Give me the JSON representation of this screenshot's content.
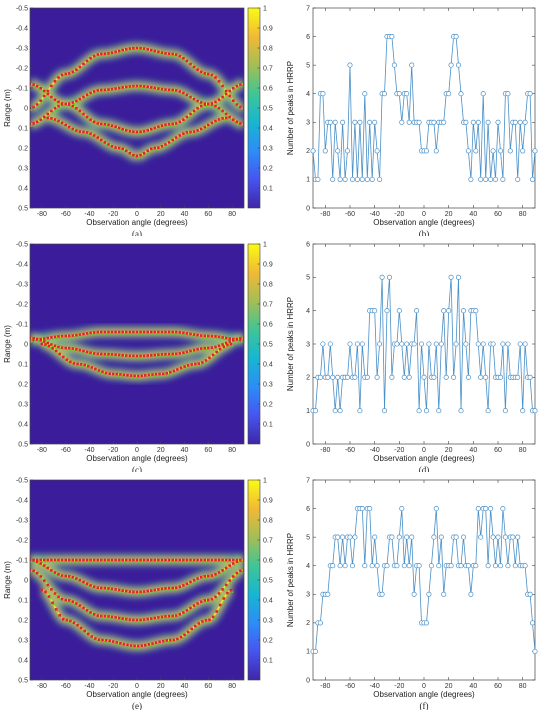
{
  "colors": {
    "heatmap_background": "#3b1c9a",
    "cmap": [
      "#3e26a8",
      "#4755f0",
      "#2c8df7",
      "#17b6d2",
      "#3fc596",
      "#a4be54",
      "#f1b935",
      "#f9fb15"
    ],
    "peak_marker": "#e3232b",
    "peak_secondary": "#6fbf3f",
    "line": "#4a90c8",
    "marker_edge": "#4a90c8"
  },
  "chart_data": [
    {
      "type": "heatmap",
      "panel_label": "(a)",
      "xlabel": "Observation angle (degrees)",
      "ylabel": "Range (m)",
      "xlim": [
        -90,
        90
      ],
      "ylim": [
        -0.5,
        0.5
      ],
      "y_reversed": true,
      "xticks": [
        -80,
        -60,
        -40,
        -20,
        0,
        20,
        40,
        60,
        80
      ],
      "yticks": [
        -0.5,
        -0.4,
        -0.3,
        -0.2,
        -0.1,
        0,
        0.1,
        0.2,
        0.3,
        0.4,
        0.5
      ],
      "colorbar_ticks": [
        0.1,
        0.2,
        0.3,
        0.4,
        0.5,
        0.6,
        0.7,
        0.8,
        0.9,
        1
      ],
      "clim": [
        0,
        1
      ],
      "scattering_curves": [
        {
          "x": [
            -90,
            -60,
            -30,
            0,
            30,
            60,
            90
          ],
          "y": [
            0.0,
            -0.17,
            -0.27,
            -0.3,
            -0.27,
            -0.17,
            0.0
          ]
        },
        {
          "x": [
            -90,
            -60,
            -30,
            0,
            30,
            60,
            90
          ],
          "y": [
            0.08,
            -0.02,
            -0.09,
            -0.11,
            -0.09,
            -0.02,
            0.08
          ]
        },
        {
          "x": [
            -90,
            -60,
            -30,
            0,
            30,
            60,
            90
          ],
          "y": [
            -0.12,
            -0.02,
            0.08,
            0.12,
            0.08,
            -0.02,
            -0.12
          ]
        },
        {
          "x": [
            -75,
            -45,
            -15,
            0
          ],
          "y": [
            0.05,
            0.12,
            0.2,
            0.24
          ]
        },
        {
          "x": [
            0,
            15,
            45,
            75
          ],
          "y": [
            0.24,
            0.2,
            0.12,
            0.05
          ]
        }
      ]
    },
    {
      "type": "line",
      "panel_label": "(b)",
      "xlabel": "Observation angle (degrees)",
      "ylabel": "Number of peaks in HRRP",
      "xlim": [
        -90,
        90
      ],
      "ylim": [
        0,
        7
      ],
      "xticks": [
        -80,
        -60,
        -40,
        -20,
        0,
        20,
        40,
        60,
        80
      ],
      "yticks": [
        0,
        1,
        2,
        3,
        4,
        5,
        6,
        7
      ],
      "x": [
        -90,
        -88,
        -86,
        -84,
        -82,
        -80,
        -78,
        -76,
        -74,
        -72,
        -70,
        -68,
        -66,
        -64,
        -62,
        -60,
        -58,
        -56,
        -54,
        -52,
        -50,
        -48,
        -46,
        -44,
        -42,
        -40,
        -38,
        -36,
        -34,
        -32,
        -30,
        -28,
        -26,
        -24,
        -22,
        -20,
        -18,
        -16,
        -14,
        -12,
        -10,
        -8,
        -6,
        -4,
        -2,
        0,
        2,
        4,
        6,
        8,
        10,
        12,
        14,
        16,
        18,
        20,
        22,
        24,
        26,
        28,
        30,
        32,
        34,
        36,
        38,
        40,
        42,
        44,
        46,
        48,
        50,
        52,
        54,
        56,
        58,
        60,
        62,
        64,
        66,
        68,
        70,
        72,
        74,
        76,
        78,
        80,
        82,
        84,
        86,
        88,
        90
      ],
      "values": [
        2,
        1,
        1,
        4,
        4,
        2,
        3,
        3,
        1,
        3,
        2,
        1,
        3,
        1,
        2,
        5,
        1,
        3,
        1,
        3,
        1,
        4,
        1,
        3,
        1,
        3,
        2,
        1,
        4,
        4,
        6,
        6,
        6,
        5,
        4,
        4,
        3,
        4,
        4,
        3,
        5,
        3,
        3,
        3,
        2,
        2,
        2,
        3,
        3,
        3,
        2,
        3,
        3,
        3,
        4,
        4,
        5,
        6,
        6,
        5,
        4,
        3,
        3,
        2,
        1,
        3,
        2,
        3,
        1,
        4,
        1,
        3,
        1,
        2,
        1,
        3,
        2,
        1,
        4,
        4,
        2,
        3,
        3,
        1,
        3,
        2,
        3,
        4,
        4,
        1,
        2
      ]
    },
    {
      "type": "heatmap",
      "panel_label": "(c)",
      "xlabel": "Observation angle (degrees)",
      "ylabel": "Range (m)",
      "xlim": [
        -90,
        90
      ],
      "ylim": [
        -0.5,
        0.5
      ],
      "y_reversed": true,
      "xticks": [
        -80,
        -60,
        -40,
        -20,
        0,
        20,
        40,
        60,
        80
      ],
      "yticks": [
        -0.5,
        -0.4,
        -0.3,
        -0.2,
        -0.1,
        0,
        0.1,
        0.2,
        0.3,
        0.4,
        0.5
      ],
      "colorbar_ticks": [
        0.1,
        0.2,
        0.3,
        0.4,
        0.5,
        0.6,
        0.7,
        0.8,
        0.9,
        1
      ],
      "clim": [
        0,
        1
      ],
      "scattering_curves": [
        {
          "x": [
            -90,
            -60,
            -30,
            0,
            30,
            60,
            90
          ],
          "y": [
            -0.02,
            -0.04,
            -0.06,
            -0.06,
            -0.06,
            -0.04,
            -0.02
          ]
        },
        {
          "x": [
            -90,
            -60,
            -30,
            0,
            30,
            60,
            90
          ],
          "y": [
            -0.03,
            0.02,
            0.05,
            0.06,
            0.05,
            0.02,
            -0.03
          ]
        },
        {
          "x": [
            -80,
            -50,
            -20,
            0,
            20,
            50,
            80
          ],
          "y": [
            0.0,
            0.1,
            0.15,
            0.16,
            0.15,
            0.1,
            0.0
          ]
        }
      ]
    },
    {
      "type": "line",
      "panel_label": "(d)",
      "xlabel": "Observation angle (degrees)",
      "ylabel": "Number of peaks in HRRP",
      "xlim": [
        -90,
        90
      ],
      "ylim": [
        0,
        6
      ],
      "xticks": [
        -80,
        -60,
        -40,
        -20,
        0,
        20,
        40,
        60,
        80
      ],
      "yticks": [
        0,
        1,
        2,
        3,
        4,
        5,
        6
      ],
      "x": [
        -90,
        -88,
        -86,
        -84,
        -82,
        -80,
        -78,
        -76,
        -74,
        -72,
        -70,
        -68,
        -66,
        -64,
        -62,
        -60,
        -58,
        -56,
        -54,
        -52,
        -50,
        -48,
        -46,
        -44,
        -42,
        -40,
        -38,
        -36,
        -34,
        -32,
        -30,
        -28,
        -26,
        -24,
        -22,
        -20,
        -18,
        -16,
        -14,
        -12,
        -10,
        -8,
        -6,
        -4,
        -2,
        0,
        2,
        4,
        6,
        8,
        10,
        12,
        14,
        16,
        18,
        20,
        22,
        24,
        26,
        28,
        30,
        32,
        34,
        36,
        38,
        40,
        42,
        44,
        46,
        48,
        50,
        52,
        54,
        56,
        58,
        60,
        62,
        64,
        66,
        68,
        70,
        72,
        74,
        76,
        78,
        80,
        82,
        84,
        86,
        88,
        90
      ],
      "values": [
        1,
        1,
        2,
        2,
        3,
        2,
        2,
        3,
        2,
        1,
        2,
        1,
        2,
        2,
        2,
        3,
        2,
        2,
        3,
        1,
        3,
        2,
        2,
        4,
        4,
        4,
        2,
        3,
        5,
        1,
        4,
        5,
        2,
        3,
        3,
        4,
        3,
        2,
        3,
        2,
        3,
        3,
        4,
        1,
        3,
        2,
        1,
        3,
        2,
        2,
        3,
        1,
        3,
        4,
        2,
        4,
        5,
        2,
        3,
        5,
        1,
        4,
        3,
        2,
        4,
        4,
        4,
        3,
        2,
        3,
        2,
        1,
        3,
        3,
        2,
        2,
        2,
        3,
        1,
        3,
        2,
        2,
        2,
        2,
        3,
        1,
        3,
        2,
        2,
        1,
        1
      ]
    },
    {
      "type": "heatmap",
      "panel_label": "(e)",
      "xlabel": "Observation angle (degrees)",
      "ylabel": "Range (m)",
      "xlim": [
        -90,
        90
      ],
      "ylim": [
        -0.5,
        0.5
      ],
      "y_reversed": true,
      "xticks": [
        -80,
        -60,
        -40,
        -20,
        0,
        20,
        40,
        60,
        80
      ],
      "yticks": [
        -0.5,
        -0.4,
        -0.3,
        -0.2,
        -0.1,
        0,
        0.1,
        0.2,
        0.3,
        0.4,
        0.5
      ],
      "colorbar_ticks": [
        0.1,
        0.2,
        0.3,
        0.4,
        0.5,
        0.6,
        0.7,
        0.8,
        0.9,
        1
      ],
      "clim": [
        0,
        1
      ],
      "scattering_curves": [
        {
          "x": [
            -90,
            -60,
            -30,
            0,
            30,
            60,
            90
          ],
          "y": [
            -0.1,
            -0.1,
            -0.1,
            -0.1,
            -0.1,
            -0.1,
            -0.1
          ]
        },
        {
          "x": [
            -90,
            -60,
            -30,
            0,
            30,
            60,
            90
          ],
          "y": [
            -0.1,
            -0.02,
            0.04,
            0.06,
            0.04,
            -0.02,
            -0.1
          ]
        },
        {
          "x": [
            -90,
            -60,
            -30,
            0,
            30,
            60,
            90
          ],
          "y": [
            -0.05,
            0.1,
            0.18,
            0.2,
            0.18,
            0.1,
            -0.05
          ]
        },
        {
          "x": [
            -80,
            -60,
            -30,
            0,
            30,
            60,
            80
          ],
          "y": [
            0.05,
            0.2,
            0.3,
            0.33,
            0.3,
            0.2,
            0.05
          ]
        }
      ]
    },
    {
      "type": "line",
      "panel_label": "(f)",
      "xlabel": "Observation angle (degrees)",
      "ylabel": "Number of peaks in HRRP",
      "xlim": [
        -90,
        90
      ],
      "ylim": [
        0,
        7
      ],
      "xticks": [
        -80,
        -60,
        -40,
        -20,
        0,
        20,
        40,
        60,
        80
      ],
      "yticks": [
        0,
        1,
        2,
        3,
        4,
        5,
        6,
        7
      ],
      "x": [
        -90,
        -88,
        -86,
        -84,
        -82,
        -80,
        -78,
        -76,
        -74,
        -72,
        -70,
        -68,
        -66,
        -64,
        -62,
        -60,
        -58,
        -56,
        -54,
        -52,
        -50,
        -48,
        -46,
        -44,
        -42,
        -40,
        -38,
        -36,
        -34,
        -32,
        -30,
        -28,
        -26,
        -24,
        -22,
        -20,
        -18,
        -16,
        -14,
        -12,
        -10,
        -8,
        -6,
        -4,
        -2,
        0,
        2,
        4,
        6,
        8,
        10,
        12,
        14,
        16,
        18,
        20,
        22,
        24,
        26,
        28,
        30,
        32,
        34,
        36,
        38,
        40,
        42,
        44,
        46,
        48,
        50,
        52,
        54,
        56,
        58,
        60,
        62,
        64,
        66,
        68,
        70,
        72,
        74,
        76,
        78,
        80,
        82,
        84,
        86,
        88,
        90
      ],
      "values": [
        1,
        1,
        2,
        2,
        3,
        3,
        3,
        4,
        4,
        5,
        5,
        4,
        5,
        4,
        5,
        5,
        4,
        5,
        6,
        6,
        6,
        4,
        6,
        6,
        4,
        5,
        4,
        3,
        3,
        4,
        4,
        5,
        5,
        4,
        4,
        5,
        6,
        4,
        5,
        4,
        5,
        3,
        4,
        4,
        2,
        2,
        2,
        3,
        4,
        5,
        6,
        4,
        5,
        3,
        4,
        4,
        4,
        5,
        5,
        4,
        4,
        5,
        4,
        4,
        3,
        4,
        4,
        6,
        5,
        6,
        6,
        4,
        6,
        5,
        4,
        5,
        4,
        6,
        5,
        4,
        5,
        5,
        4,
        5,
        4,
        4,
        4,
        3,
        3,
        2,
        1
      ]
    }
  ]
}
